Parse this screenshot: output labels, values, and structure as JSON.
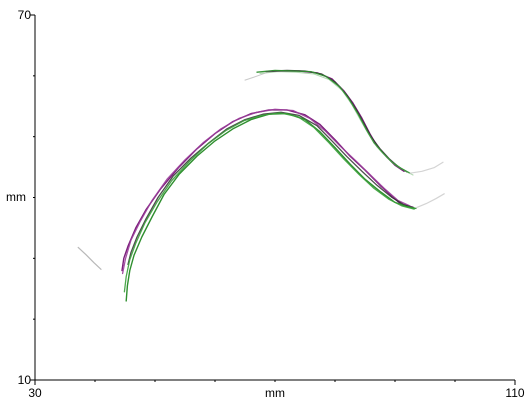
{
  "chart_data": {
    "type": "line",
    "title": "",
    "xlabel": "mm",
    "ylabel": "mm",
    "xlim": [
      30,
      110
    ],
    "ylim": [
      10,
      70
    ],
    "x_ticks": [
      30,
      110
    ],
    "y_ticks": [
      10,
      70
    ],
    "x_minor_ticks": [
      40,
      50,
      60,
      70,
      80,
      90,
      100
    ],
    "y_minor_ticks": [
      20,
      30,
      40,
      50,
      60
    ],
    "grid": false,
    "series": [
      {
        "color": "#7a1d7a",
        "opacity": 1,
        "width": 1.4,
        "points": [
          [
            44.5,
            28
          ],
          [
            44.8,
            30
          ],
          [
            45.5,
            32
          ],
          [
            46.8,
            35
          ],
          [
            48.5,
            38
          ],
          [
            51,
            41.5
          ],
          [
            54,
            45
          ],
          [
            57,
            48
          ],
          [
            60,
            50.5
          ],
          [
            63,
            52.5
          ],
          [
            66,
            53.8
          ],
          [
            69,
            54.4
          ],
          [
            72,
            54.4
          ],
          [
            75,
            53.6
          ],
          [
            77.5,
            52
          ],
          [
            80,
            49.5
          ],
          [
            82.5,
            46.8
          ],
          [
            85,
            44.5
          ],
          [
            87.5,
            42
          ],
          [
            89.5,
            40.2
          ],
          [
            91,
            38.9
          ],
          [
            93,
            38.4
          ]
        ]
      },
      {
        "color": "#9a3d9a",
        "opacity": 0.9,
        "width": 1.3,
        "points": [
          [
            44.6,
            27.5
          ],
          [
            45.1,
            30
          ],
          [
            46,
            33
          ],
          [
            47.5,
            36
          ],
          [
            49.5,
            39.5
          ],
          [
            52,
            43
          ],
          [
            55,
            46.2
          ],
          [
            58,
            49
          ],
          [
            61,
            51.3
          ],
          [
            64,
            53
          ],
          [
            67,
            54
          ],
          [
            70,
            54.5
          ],
          [
            73,
            54.3
          ],
          [
            75.8,
            53
          ],
          [
            78.3,
            51
          ],
          [
            80.8,
            48.5
          ],
          [
            83.3,
            46.2
          ],
          [
            85.8,
            43.8
          ],
          [
            88.2,
            41.5
          ],
          [
            90.5,
            39.5
          ],
          [
            92.5,
            38.6
          ]
        ]
      },
      {
        "color": "#2e2e2e",
        "opacity": 0.85,
        "width": 1.3,
        "points": [
          [
            45.5,
            29
          ],
          [
            46,
            31
          ],
          [
            47,
            33.5
          ],
          [
            48.5,
            36.5
          ],
          [
            50.5,
            40
          ],
          [
            53,
            43.5
          ],
          [
            56,
            46.5
          ],
          [
            59,
            49
          ],
          [
            62,
            51.3
          ],
          [
            65,
            52.8
          ],
          [
            68,
            53.7
          ],
          [
            71,
            54
          ],
          [
            74,
            53.5
          ],
          [
            77,
            51.8
          ],
          [
            79.5,
            49.3
          ],
          [
            82,
            46.7
          ],
          [
            84.5,
            44.3
          ],
          [
            87,
            42
          ],
          [
            89.5,
            40
          ],
          [
            91.5,
            38.8
          ],
          [
            93,
            38.3
          ]
        ]
      },
      {
        "color": "#2f8f2f",
        "opacity": 1,
        "width": 1.4,
        "points": [
          [
            45.2,
            23
          ],
          [
            45.4,
            25.5
          ],
          [
            45.8,
            28
          ],
          [
            46.5,
            30.5
          ],
          [
            47.8,
            33.5
          ],
          [
            49.5,
            36.8
          ],
          [
            51.5,
            40.5
          ],
          [
            54,
            43.8
          ],
          [
            57,
            46.8
          ],
          [
            60,
            49.3
          ],
          [
            63,
            51.3
          ],
          [
            66,
            52.8
          ],
          [
            69,
            53.7
          ],
          [
            72,
            53.8
          ],
          [
            75,
            52.8
          ],
          [
            77.5,
            50.8
          ],
          [
            80,
            48.2
          ],
          [
            82.5,
            45.5
          ],
          [
            85,
            43
          ],
          [
            87.5,
            41
          ],
          [
            90,
            39.2
          ],
          [
            92,
            38.5
          ],
          [
            93.5,
            38.2
          ]
        ]
      },
      {
        "color": "#3aa03a",
        "opacity": 0.9,
        "width": 1.3,
        "points": [
          [
            44.9,
            24.5
          ],
          [
            45.2,
            27
          ],
          [
            45.8,
            29.8
          ],
          [
            46.8,
            32.5
          ],
          [
            48.3,
            35.8
          ],
          [
            50.3,
            39.2
          ],
          [
            52.8,
            42.8
          ],
          [
            55.8,
            46
          ],
          [
            58.8,
            48.8
          ],
          [
            61.8,
            51
          ],
          [
            64.8,
            52.6
          ],
          [
            67.8,
            53.5
          ],
          [
            70.8,
            53.9
          ],
          [
            73.8,
            53.3
          ],
          [
            76.5,
            51.5
          ],
          [
            79,
            49
          ],
          [
            81.5,
            46.3
          ],
          [
            84,
            43.8
          ],
          [
            86.5,
            41.5
          ],
          [
            89,
            39.7
          ],
          [
            91.2,
            38.6
          ],
          [
            93.2,
            38.1
          ]
        ]
      },
      {
        "color": "#7a1d7a",
        "opacity": 1,
        "width": 1.4,
        "points": [
          [
            68.5,
            60.7
          ],
          [
            71,
            60.8
          ],
          [
            74,
            60.8
          ],
          [
            77,
            60.5
          ],
          [
            79.5,
            59.5
          ],
          [
            81.5,
            57.5
          ],
          [
            83,
            55.5
          ],
          [
            84.5,
            53
          ],
          [
            85.8,
            50.5
          ],
          [
            87,
            48.5
          ],
          [
            88.5,
            46.8
          ],
          [
            90,
            45.3
          ],
          [
            91.5,
            44.3
          ]
        ]
      },
      {
        "color": "#2e2e2e",
        "opacity": 0.85,
        "width": 1.3,
        "points": [
          [
            69.5,
            60.8
          ],
          [
            72,
            60.9
          ],
          [
            75,
            60.8
          ],
          [
            77.8,
            60.3
          ],
          [
            80,
            59
          ],
          [
            82,
            56.8
          ],
          [
            83.5,
            54.5
          ],
          [
            84.8,
            52.2
          ],
          [
            86,
            50
          ],
          [
            87.5,
            48
          ],
          [
            89,
            46.4
          ],
          [
            90.5,
            45.1
          ],
          [
            92,
            44.2
          ]
        ]
      },
      {
        "color": "#2f8f2f",
        "opacity": 0.95,
        "width": 1.3,
        "points": [
          [
            67,
            60.6
          ],
          [
            70,
            60.9
          ],
          [
            73,
            60.8
          ],
          [
            76,
            60.7
          ],
          [
            78.5,
            59.9
          ],
          [
            80.8,
            58.2
          ],
          [
            82.3,
            56.2
          ],
          [
            83.8,
            53.8
          ],
          [
            85.2,
            51.2
          ],
          [
            86.5,
            49
          ],
          [
            88,
            47.3
          ],
          [
            89.5,
            45.8
          ],
          [
            91,
            44.8
          ],
          [
            92.5,
            44
          ]
        ]
      },
      {
        "color": "#55aa55",
        "opacity": 0.45,
        "width": 1.1,
        "points": [
          [
            67.5,
            60.4
          ],
          [
            70.5,
            60.7
          ],
          [
            73.5,
            60.6
          ],
          [
            76.5,
            60.3
          ],
          [
            79,
            59.4
          ],
          [
            81.2,
            57.6
          ],
          [
            82.8,
            55.3
          ],
          [
            84.2,
            52.8
          ],
          [
            85.6,
            50.4
          ],
          [
            87,
            48.3
          ],
          [
            88.6,
            46.6
          ],
          [
            90.2,
            45.2
          ],
          [
            91.8,
            44.3
          ],
          [
            93,
            43.7
          ]
        ]
      },
      {
        "color": "#bbbbbb",
        "opacity": 0.8,
        "width": 1.0,
        "points": [
          [
            68.5,
            60.5
          ],
          [
            66.5,
            59.8
          ],
          [
            65,
            59.3
          ]
        ]
      },
      {
        "color": "#b0b0b0",
        "opacity": 0.9,
        "width": 1.2,
        "points": [
          [
            37.2,
            31.8
          ],
          [
            38.5,
            30.6
          ],
          [
            39.8,
            29.3
          ],
          [
            41,
            28.2
          ]
        ]
      },
      {
        "color": "#cfcfcf",
        "opacity": 0.9,
        "width": 1.2,
        "points": [
          [
            93.5,
            38.3
          ],
          [
            95.2,
            39
          ],
          [
            96.8,
            39.8
          ],
          [
            98.2,
            40.6
          ]
        ]
      },
      {
        "color": "#cfcfcf",
        "opacity": 0.9,
        "width": 1.2,
        "points": [
          [
            92.5,
            44
          ],
          [
            94.5,
            44.3
          ],
          [
            96.5,
            44.9
          ],
          [
            98,
            45.8
          ]
        ]
      }
    ]
  }
}
